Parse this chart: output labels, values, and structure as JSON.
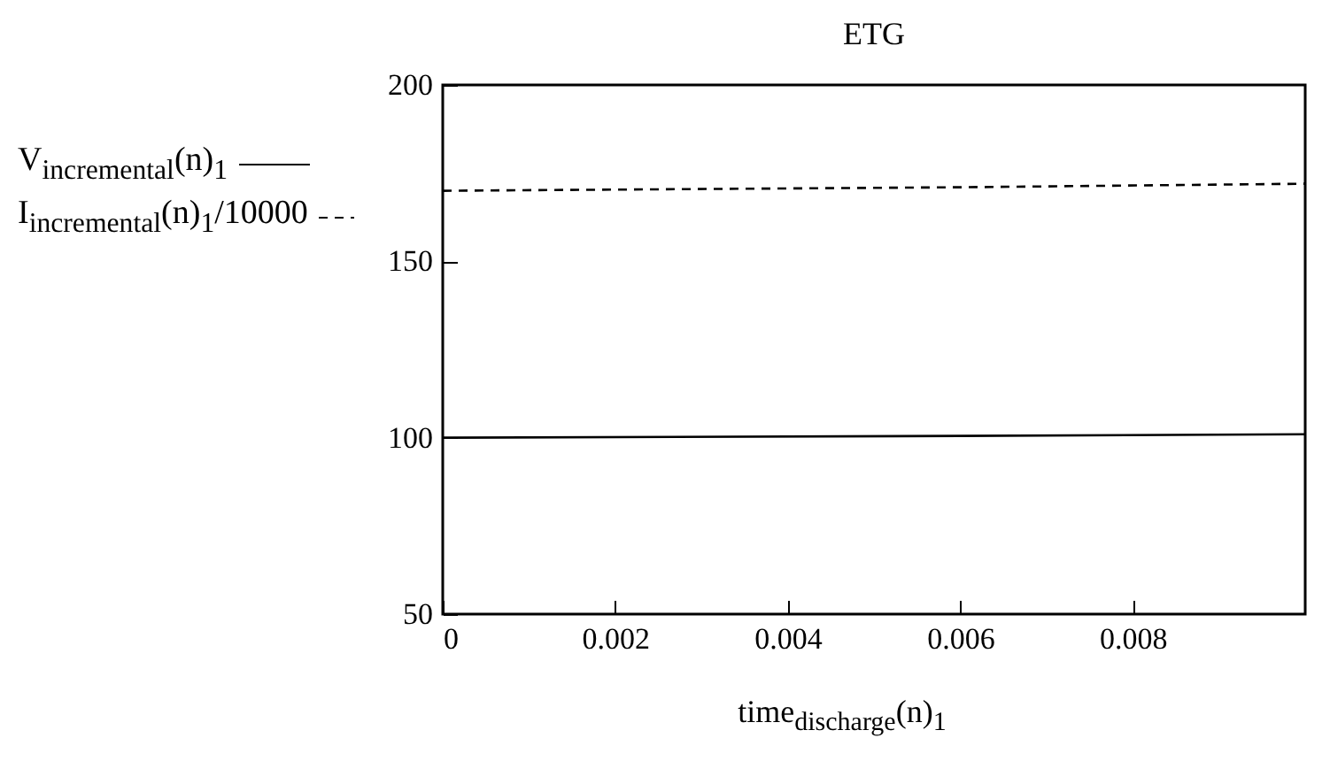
{
  "chart_data": {
    "type": "line",
    "title": "ETG",
    "xlabel": "time$_{discharge}$(n)$_{1}$",
    "x": [
      0,
      0.006,
      0.01
    ],
    "series": [
      {
        "name": "V$_{incremental}$(n)$_{1}$",
        "color": "#000000",
        "line_style": "solid",
        "values": [
          100,
          100.5,
          101
        ]
      },
      {
        "name": "I$_{incremental}$(n)$_{1}$/10000",
        "color": "#000000",
        "line_style": "dashed",
        "values": [
          170,
          171,
          172
        ]
      }
    ],
    "xlim": [
      0,
      0.01
    ],
    "xticks": [
      0,
      0.002,
      0.004,
      0.006,
      0.008
    ],
    "ylim": [
      50,
      200
    ],
    "yticks": [
      50,
      100,
      150,
      200
    ],
    "grid": false,
    "legend": "left",
    "marker": "none"
  }
}
